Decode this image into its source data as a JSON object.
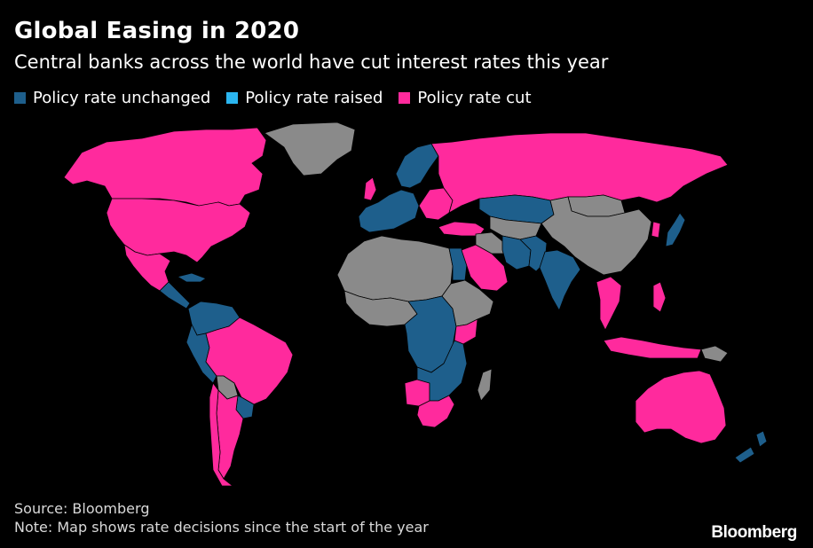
{
  "header": {
    "title": "Global Easing in 2020",
    "subtitle": "Central banks across the world have cut interest rates this year"
  },
  "legend": [
    {
      "label": "Policy rate unchanged",
      "color": "#1e5f8c"
    },
    {
      "label": "Policy rate raised",
      "color": "#2bb6f0"
    },
    {
      "label": "Policy rate cut",
      "color": "#ff2a9d"
    }
  ],
  "colors": {
    "background": "#000000",
    "no_data": "#8a8a8a",
    "unchanged": "#1e5f8c",
    "raised": "#2bb6f0",
    "cut": "#ff2a9d"
  },
  "map": {
    "regions": {
      "canada": "cut",
      "usa": "cut",
      "mexico": "cut",
      "greenland": "no_data",
      "central_america": "unchanged",
      "caribbean": "unchanged",
      "colombia_venezuela": "unchanged",
      "peru": "unchanged",
      "brazil": "cut",
      "bolivia": "no_data",
      "paraguay_uruguay": "unchanged",
      "argentina": "cut",
      "chile": "cut",
      "western_europe": "unchanged",
      "uk": "cut",
      "scandinavia": "unchanged",
      "eastern_europe": "cut",
      "turkey": "cut",
      "russia": "cut",
      "kazakhstan": "unchanged",
      "central_asia": "no_data",
      "china": "no_data",
      "mongolia": "no_data",
      "japan": "unchanged",
      "korea": "cut",
      "north_africa": "no_data",
      "egypt": "unchanged",
      "saudi_arabia": "cut",
      "iran": "unchanged",
      "middle_east": "no_data",
      "pakistan_afghanistan": "unchanged",
      "india": "unchanged",
      "southeast_asia": "cut",
      "indonesia": "cut",
      "philippines": "cut",
      "west_africa": "no_data",
      "central_africa": "unchanged",
      "east_africa": "no_data",
      "kenya": "cut",
      "angola": "cut",
      "southern_africa": "unchanged",
      "south_africa": "cut",
      "madagascar": "no_data",
      "australia": "cut",
      "new_zealand": "unchanged",
      "papua_new_guinea": "no_data"
    }
  },
  "footer": {
    "source": "Source: Bloomberg",
    "note": "Note: Map shows rate decisions since the start of the year",
    "logo": "Bloomberg"
  }
}
